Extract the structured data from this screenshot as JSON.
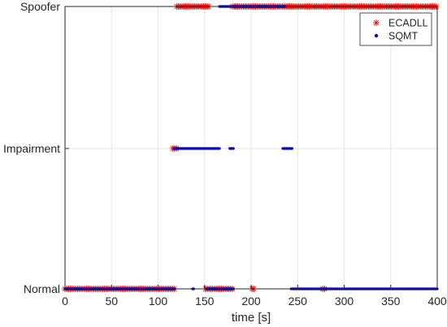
{
  "chart_data": {
    "type": "scatter",
    "xlabel": "time [s]",
    "ylabel": "",
    "title": "",
    "xlim": [
      0,
      400
    ],
    "x_ticks": [
      0,
      50,
      100,
      150,
      200,
      250,
      300,
      350,
      400
    ],
    "y_categories": [
      "Normal",
      "Impairment",
      "Spoofer"
    ],
    "grid": true,
    "legend_position": "top-right",
    "series": [
      {
        "name": "ECADLL",
        "marker": "asterisk",
        "color": "#ff0000",
        "segments": [
          {
            "state": "Normal",
            "x": [
              0,
              118
            ]
          },
          {
            "state": "Normal",
            "x": [
              151,
              181
            ]
          },
          {
            "state": "Normal",
            "x": [
              201,
              204
            ]
          },
          {
            "state": "Normal",
            "x": [
              277,
              280
            ]
          },
          {
            "state": "Impairment",
            "x": [
              116,
              120
            ]
          },
          {
            "state": "Spoofer",
            "x": [
              120,
              155
            ]
          },
          {
            "state": "Spoofer",
            "x": [
              180,
              400
            ]
          }
        ]
      },
      {
        "name": "SQMT",
        "marker": "dot",
        "color": "#0000cc",
        "segments": [
          {
            "state": "Normal",
            "x": [
              0,
              118
            ]
          },
          {
            "state": "Normal",
            "x": [
              137,
              138
            ]
          },
          {
            "state": "Normal",
            "x": [
              152,
              181
            ]
          },
          {
            "state": "Normal",
            "x": [
              243,
              400
            ]
          },
          {
            "state": "Impairment",
            "x": [
              117,
              166
            ]
          },
          {
            "state": "Impairment",
            "x": [
              177,
              181
            ]
          },
          {
            "state": "Impairment",
            "x": [
              234,
              244
            ]
          },
          {
            "state": "Spoofer",
            "x": [
              166,
              178
            ]
          },
          {
            "state": "Spoofer",
            "x": [
              180,
              236
            ]
          }
        ]
      }
    ]
  }
}
